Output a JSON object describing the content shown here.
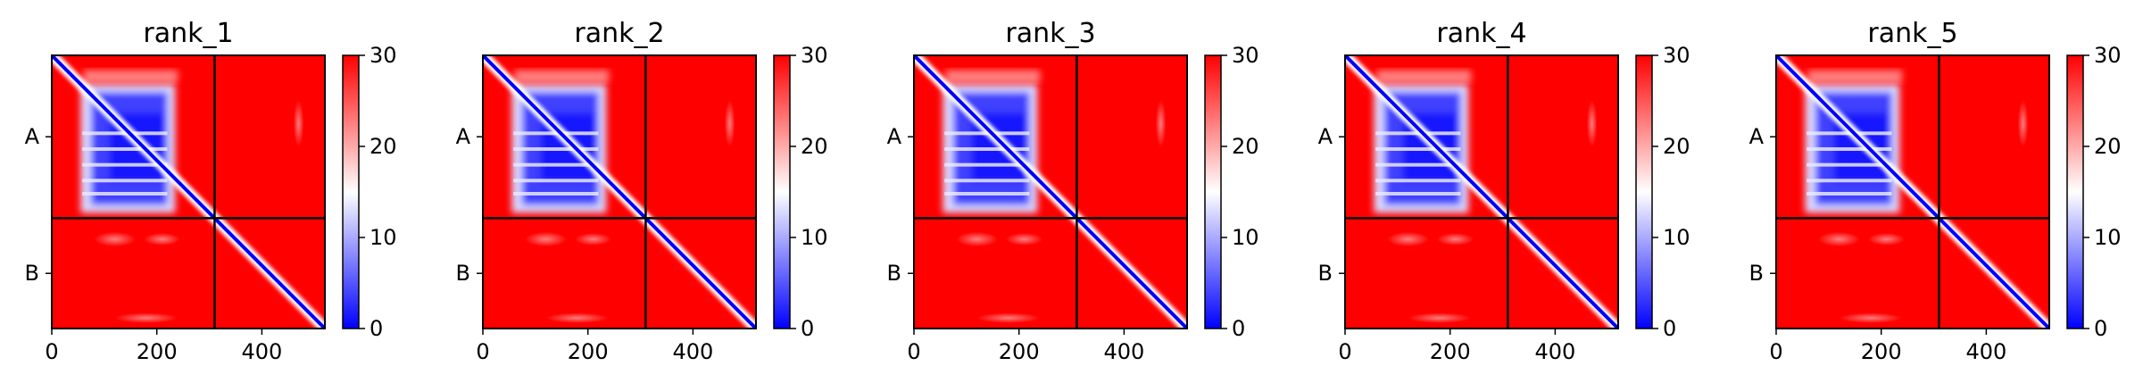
{
  "chart_data": [
    {
      "type": "heatmap",
      "title": "rank_1",
      "xlabel": "",
      "ylabel": "",
      "xlim": [
        0,
        520
      ],
      "ylim": [
        520,
        0
      ],
      "x_ticks": [
        "0",
        "200",
        "400"
      ],
      "y_tick_labels": [
        "A",
        "B"
      ],
      "chain_boundary": 310,
      "colorbar": {
        "min": 0,
        "max": 30,
        "ticks": [
          "0",
          "10",
          "20",
          "30"
        ],
        "colormap": "bwr"
      },
      "colors": {
        "low": "#0000ff",
        "mid": "#ffffff",
        "high": "#ff0000"
      },
      "blocks": [
        {
          "rows": [
            0,
            310
          ],
          "cols": [
            0,
            310
          ],
          "pattern": "low-error square"
        },
        {
          "rows": [
            0,
            310
          ],
          "cols": [
            310,
            520
          ],
          "pattern": "mostly high error"
        },
        {
          "rows": [
            310,
            520
          ],
          "cols": [
            0,
            310
          ],
          "pattern": "mostly high error"
        },
        {
          "rows": [
            310,
            520
          ],
          "cols": [
            310,
            520
          ],
          "pattern": "diagonal only"
        }
      ]
    },
    {
      "type": "heatmap",
      "title": "rank_2",
      "xlabel": "",
      "ylabel": "",
      "xlim": [
        0,
        520
      ],
      "ylim": [
        520,
        0
      ],
      "x_ticks": [
        "0",
        "200",
        "400"
      ],
      "y_tick_labels": [
        "A",
        "B"
      ],
      "chain_boundary": 310,
      "colorbar": {
        "min": 0,
        "max": 30,
        "ticks": [
          "0",
          "10",
          "20",
          "30"
        ],
        "colormap": "bwr"
      },
      "colors": {
        "low": "#0000ff",
        "mid": "#ffffff",
        "high": "#ff0000"
      },
      "blocks": [
        {
          "rows": [
            0,
            310
          ],
          "cols": [
            0,
            310
          ],
          "pattern": "low-error square"
        },
        {
          "rows": [
            0,
            310
          ],
          "cols": [
            310,
            520
          ],
          "pattern": "mostly high error"
        },
        {
          "rows": [
            310,
            520
          ],
          "cols": [
            0,
            310
          ],
          "pattern": "mostly high error"
        },
        {
          "rows": [
            310,
            520
          ],
          "cols": [
            310,
            520
          ],
          "pattern": "diagonal only"
        }
      ]
    },
    {
      "type": "heatmap",
      "title": "rank_3",
      "xlabel": "",
      "ylabel": "",
      "xlim": [
        0,
        520
      ],
      "ylim": [
        520,
        0
      ],
      "x_ticks": [
        "0",
        "200",
        "400"
      ],
      "y_tick_labels": [
        "A",
        "B"
      ],
      "chain_boundary": 310,
      "colorbar": {
        "min": 0,
        "max": 30,
        "ticks": [
          "0",
          "10",
          "20",
          "30"
        ],
        "colormap": "bwr"
      },
      "colors": {
        "low": "#0000ff",
        "mid": "#ffffff",
        "high": "#ff0000"
      },
      "blocks": [
        {
          "rows": [
            0,
            310
          ],
          "cols": [
            0,
            310
          ],
          "pattern": "low-error square"
        },
        {
          "rows": [
            0,
            310
          ],
          "cols": [
            310,
            520
          ],
          "pattern": "mostly high error"
        },
        {
          "rows": [
            310,
            520
          ],
          "cols": [
            0,
            310
          ],
          "pattern": "mostly high error"
        },
        {
          "rows": [
            310,
            520
          ],
          "cols": [
            310,
            520
          ],
          "pattern": "diagonal only"
        }
      ]
    },
    {
      "type": "heatmap",
      "title": "rank_4",
      "xlabel": "",
      "ylabel": "",
      "xlim": [
        0,
        520
      ],
      "ylim": [
        520,
        0
      ],
      "x_ticks": [
        "0",
        "200",
        "400"
      ],
      "y_tick_labels": [
        "A",
        "B"
      ],
      "chain_boundary": 310,
      "colorbar": {
        "min": 0,
        "max": 30,
        "ticks": [
          "0",
          "10",
          "20",
          "30"
        ],
        "colormap": "bwr"
      },
      "colors": {
        "low": "#0000ff",
        "mid": "#ffffff",
        "high": "#ff0000"
      },
      "blocks": [
        {
          "rows": [
            0,
            310
          ],
          "cols": [
            0,
            310
          ],
          "pattern": "low-error square"
        },
        {
          "rows": [
            0,
            310
          ],
          "cols": [
            310,
            520
          ],
          "pattern": "mostly high error"
        },
        {
          "rows": [
            310,
            520
          ],
          "cols": [
            0,
            310
          ],
          "pattern": "mostly high error"
        },
        {
          "rows": [
            310,
            520
          ],
          "cols": [
            310,
            520
          ],
          "pattern": "diagonal only"
        }
      ]
    },
    {
      "type": "heatmap",
      "title": "rank_5",
      "xlabel": "",
      "ylabel": "",
      "xlim": [
        0,
        520
      ],
      "ylim": [
        520,
        0
      ],
      "x_ticks": [
        "0",
        "200",
        "400"
      ],
      "y_tick_labels": [
        "A",
        "B"
      ],
      "chain_boundary": 310,
      "colorbar": {
        "min": 0,
        "max": 30,
        "ticks": [
          "0",
          "10",
          "20",
          "30"
        ],
        "colormap": "bwr"
      },
      "colors": {
        "low": "#0000ff",
        "mid": "#ffffff",
        "high": "#ff0000"
      },
      "blocks": [
        {
          "rows": [
            0,
            310
          ],
          "cols": [
            0,
            310
          ],
          "pattern": "low-error square"
        },
        {
          "rows": [
            0,
            310
          ],
          "cols": [
            310,
            520
          ],
          "pattern": "mostly high error"
        },
        {
          "rows": [
            310,
            520
          ],
          "cols": [
            0,
            310
          ],
          "pattern": "mostly high error"
        },
        {
          "rows": [
            310,
            520
          ],
          "cols": [
            310,
            520
          ],
          "pattern": "diagonal only"
        }
      ]
    }
  ]
}
